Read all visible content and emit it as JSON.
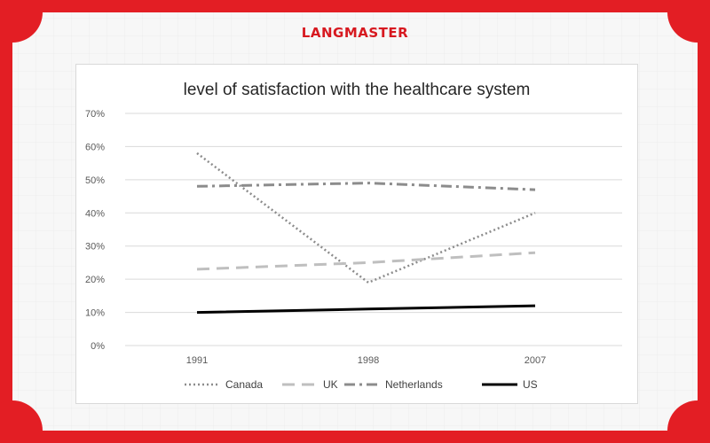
{
  "brand": {
    "name": "LANGMASTER",
    "color": "#d71920"
  },
  "colors": {
    "frame": "#e31e24",
    "grid": "#d9d9d9",
    "background": "#f7f7f7"
  },
  "chart_data": {
    "type": "line",
    "title": "level of satisfaction with the healthcare system",
    "xlabel": "",
    "ylabel": "",
    "categories": [
      "1991",
      "1998",
      "2007"
    ],
    "ylim": [
      0,
      70
    ],
    "yticks": [
      "0%",
      "10%",
      "20%",
      "30%",
      "40%",
      "50%",
      "60%",
      "70%"
    ],
    "grid": true,
    "legend_position": "bottom",
    "series": [
      {
        "name": "Canada",
        "values": [
          58,
          19,
          40
        ],
        "color": "#8c8c8c",
        "style": "dotted"
      },
      {
        "name": "UK",
        "values": [
          23,
          25,
          28
        ],
        "color": "#bfbfbf",
        "style": "dashed"
      },
      {
        "name": "Netherlands",
        "values": [
          48,
          49,
          47
        ],
        "color": "#8c8c8c",
        "style": "dash-dot"
      },
      {
        "name": "US",
        "values": [
          10,
          11,
          12
        ],
        "color": "#000000",
        "style": "solid"
      }
    ]
  }
}
